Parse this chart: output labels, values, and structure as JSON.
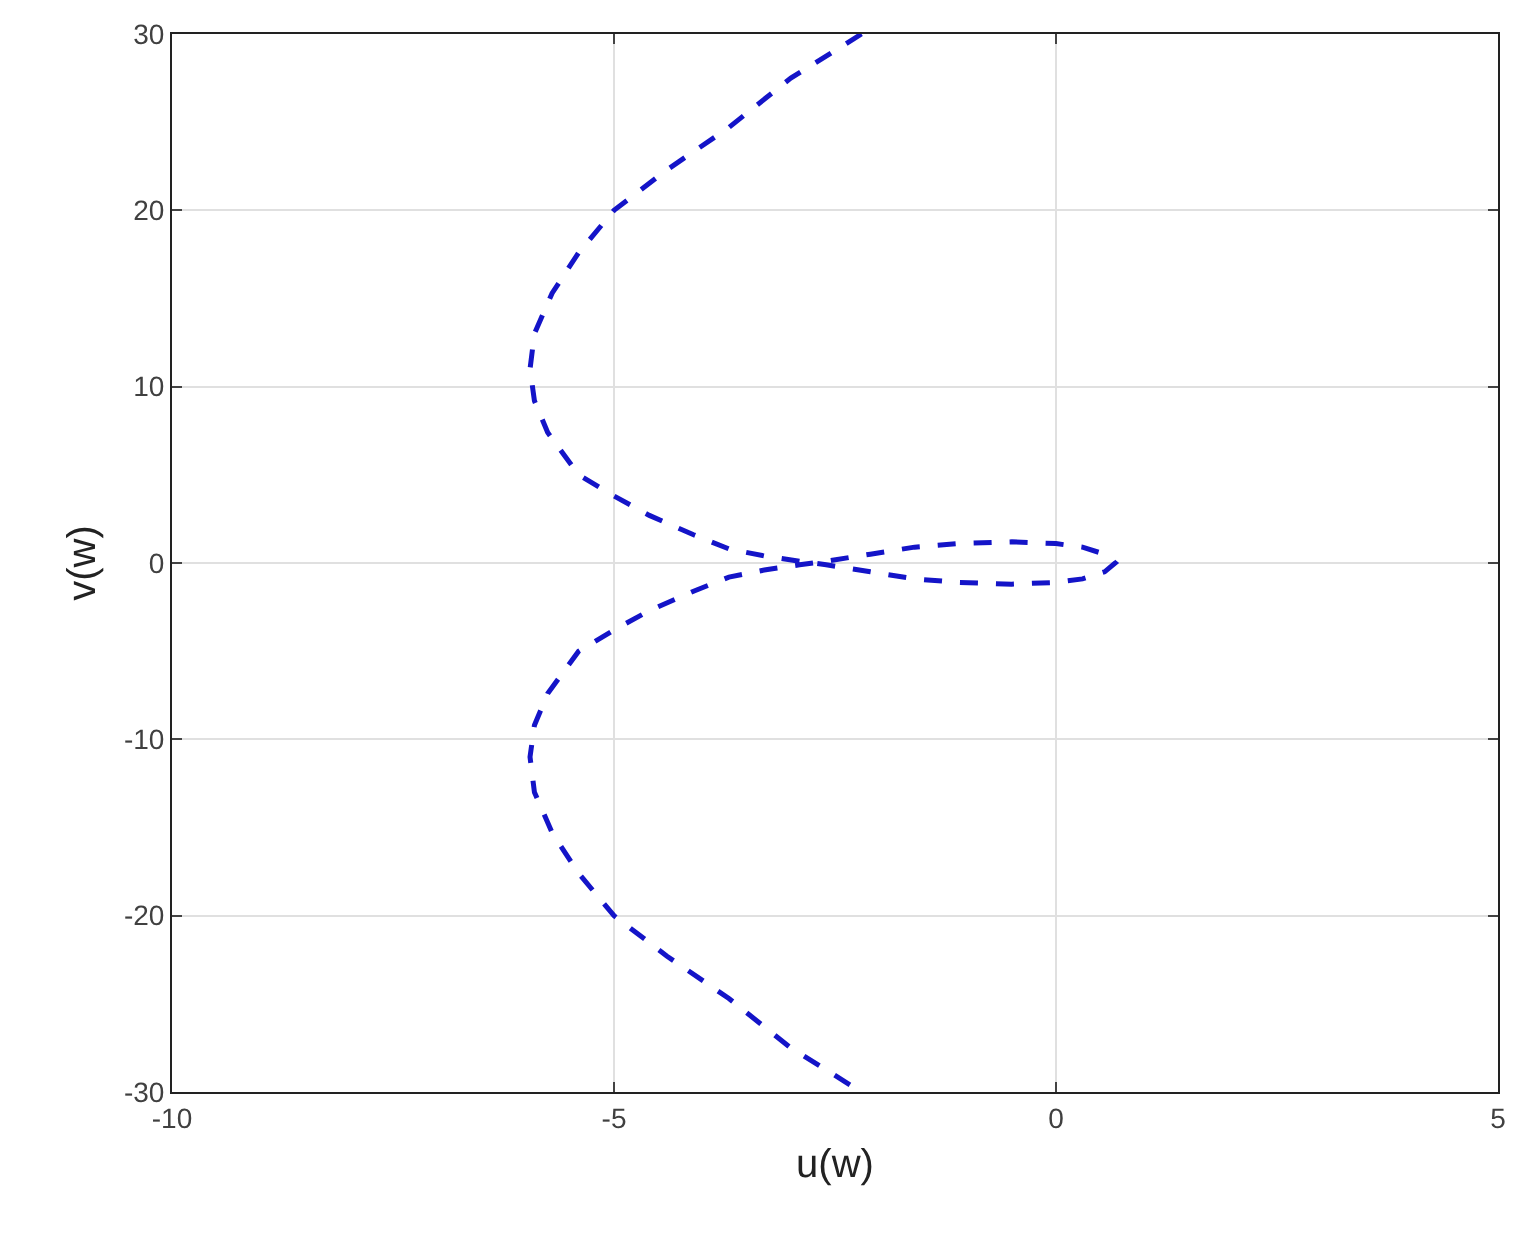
{
  "chart_data": {
    "type": "line",
    "xlabel": "u(w)",
    "ylabel": "v(w)",
    "xlim": [
      -10,
      5
    ],
    "ylim": [
      -30,
      30
    ],
    "xticks": [
      -10,
      -5,
      0,
      5
    ],
    "yticks": [
      -30,
      -20,
      -10,
      0,
      10,
      20,
      30
    ],
    "grid": true,
    "marker": "none",
    "line_style": "dashed",
    "series": [
      {
        "color": "#1414c8",
        "x": [
          -2.2,
          -3.0,
          -3.7,
          -4.4,
          -5.0,
          -5.4,
          -5.7,
          -5.9,
          -5.95,
          -5.9,
          -5.75,
          -5.4,
          -5.0,
          -4.6,
          -4.1,
          -3.7,
          -3.3,
          -2.9,
          -2.6,
          -2.1,
          -1.6,
          -1.1,
          -0.5,
          0.0,
          0.3,
          0.55,
          0.67,
          0.55,
          0.3,
          0.0,
          -0.5,
          -1.1,
          -1.6,
          -2.1,
          -2.6,
          -2.9,
          -3.3,
          -3.7,
          -4.1,
          -4.6,
          -5.0,
          -5.4,
          -5.75,
          -5.9,
          -5.95,
          -5.9,
          -5.7,
          -5.4,
          -5.0,
          -4.4,
          -3.7,
          -3.0,
          -2.2
        ],
        "values": [
          30,
          27.5,
          24.7,
          22.3,
          20,
          17.6,
          15.3,
          13,
          11,
          9.2,
          7.4,
          5,
          3.8,
          2.7,
          1.6,
          0.8,
          0.4,
          0.1,
          -0.1,
          -0.5,
          -0.9,
          -1.1,
          -1.2,
          -1.1,
          -0.9,
          -0.5,
          0,
          0.5,
          0.9,
          1.1,
          1.2,
          1.1,
          0.9,
          0.5,
          0.1,
          -0.1,
          -0.4,
          -0.8,
          -1.6,
          -2.7,
          -3.8,
          -5,
          -7.4,
          -9.2,
          -11,
          -13,
          -15.3,
          -17.6,
          -20,
          -22.3,
          -24.7,
          -27.5,
          -30
        ]
      }
    ]
  }
}
